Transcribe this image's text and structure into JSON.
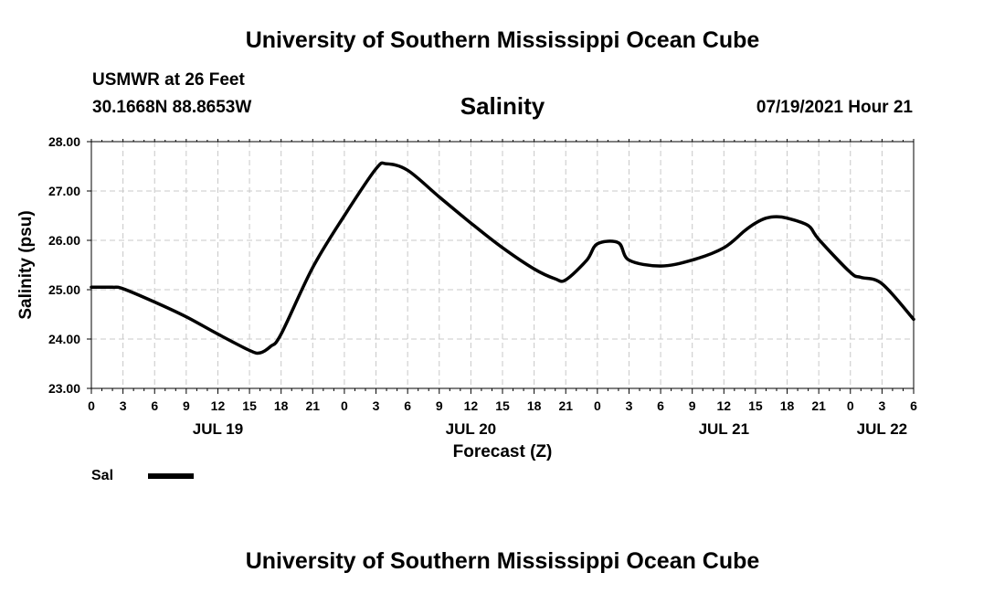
{
  "page": {
    "title": "University of Southern Mississippi Ocean Cube",
    "footer_title": "University of Southern Mississippi Ocean Cube",
    "station": "USMWR at 26 Feet",
    "coords": "30.1668N  88.8653W",
    "variable": "Salinity",
    "datetime": "07/19/2021 Hour 21"
  },
  "chart_data": {
    "type": "line",
    "title": "Salinity",
    "xlabel": "Forecast (Z)",
    "ylabel": "Salinity (psu)",
    "ylim": [
      23.0,
      28.0
    ],
    "xlim": [
      0,
      78
    ],
    "y_ticks": [
      "23.00",
      "24.00",
      "25.00",
      "26.00",
      "27.00",
      "28.00"
    ],
    "x_ticks": [
      "0",
      "3",
      "6",
      "9",
      "12",
      "15",
      "18",
      "21",
      "0",
      "3",
      "6",
      "9",
      "12",
      "15",
      "18",
      "21",
      "0",
      "3",
      "6",
      "9",
      "12",
      "15",
      "18",
      "21",
      "0",
      "3",
      "6"
    ],
    "day_labels": [
      {
        "label": "JUL 19",
        "hour": 12
      },
      {
        "label": "JUL 20",
        "hour": 36
      },
      {
        "label": "JUL 21",
        "hour": 60
      },
      {
        "label": "JUL 22",
        "hour": 75
      }
    ],
    "grid": true,
    "legend": {
      "position": "bottom-left",
      "entries": [
        "Sal"
      ]
    },
    "series": [
      {
        "name": "Sal",
        "x": [
          0,
          2,
          3,
          6,
          9,
          12,
          15,
          16,
          17,
          18,
          21,
          24,
          27,
          28,
          30,
          33,
          36,
          39,
          42,
          44,
          45,
          47,
          48,
          50,
          51,
          54,
          57,
          60,
          62,
          63,
          64,
          65,
          66,
          68,
          69,
          72,
          73,
          75,
          78
        ],
        "values": [
          25.05,
          25.05,
          25.02,
          24.75,
          24.45,
          24.1,
          23.77,
          23.72,
          23.85,
          24.1,
          25.45,
          26.5,
          27.45,
          27.55,
          27.42,
          26.88,
          26.35,
          25.85,
          25.42,
          25.22,
          25.2,
          25.6,
          25.93,
          25.95,
          25.6,
          25.48,
          25.6,
          25.85,
          26.2,
          26.35,
          26.45,
          26.48,
          26.45,
          26.3,
          26.02,
          25.35,
          25.25,
          25.12,
          24.4
        ]
      }
    ]
  }
}
